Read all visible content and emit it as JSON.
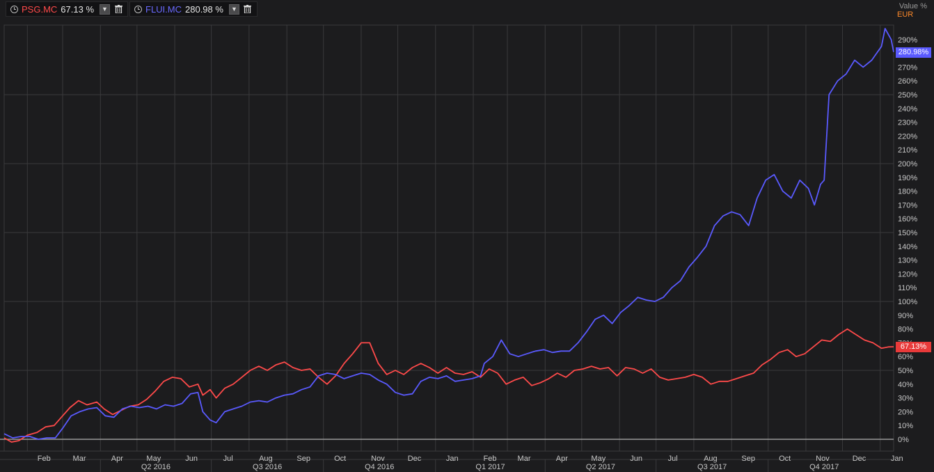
{
  "legend": [
    {
      "ticker": "PSG.MC",
      "value": "67.13 %",
      "color": "#ff4a4a"
    },
    {
      "ticker": "FLUI.MC",
      "value": "280.98 %",
      "color": "#5a5aff"
    }
  ],
  "axis_header": {
    "unit": "Value %",
    "currency": "EUR"
  },
  "last_tags": {
    "fluidra": "280.98%",
    "prosegur": "67.13%"
  },
  "icons": {
    "clock": "clock-icon",
    "dropdown": "chevron-down-icon",
    "delete": "trash-icon"
  },
  "colors": {
    "background": "#1c1c1e",
    "grid": "#3a3a3c",
    "prosegur": "#ff4a4a",
    "fluidra": "#5a5aff",
    "currency": "#ff8a2a",
    "zero_line": "#9a9a9a"
  },
  "chart_data": {
    "type": "line",
    "x_range": [
      "2016-01-13",
      "2018-01-12"
    ],
    "ylim": [
      -3,
      300
    ],
    "y_ticks": [
      0,
      10,
      20,
      30,
      40,
      50,
      60,
      70,
      80,
      90,
      100,
      110,
      120,
      130,
      140,
      150,
      160,
      170,
      180,
      190,
      200,
      210,
      220,
      230,
      240,
      250,
      260,
      270,
      280,
      290
    ],
    "y_tick_labels": [
      "0%",
      "10%",
      "20%",
      "30%",
      "40%",
      "50%",
      "60%",
      "70%",
      "80%",
      "90%",
      "100%",
      "110%",
      "120%",
      "130%",
      "140%",
      "150%",
      "160%",
      "170%",
      "180%",
      "190%",
      "200%",
      "210%",
      "220%",
      "230%",
      "240%",
      "250%",
      "260%",
      "270%",
      "280%",
      "290%"
    ],
    "month_ticks": [
      {
        "date": "2016-02-01",
        "label": "Feb"
      },
      {
        "date": "2016-03-01",
        "label": "Mar"
      },
      {
        "date": "2016-04-01",
        "label": "Apr"
      },
      {
        "date": "2016-05-01",
        "label": "May"
      },
      {
        "date": "2016-06-01",
        "label": "Jun"
      },
      {
        "date": "2016-07-01",
        "label": "Jul"
      },
      {
        "date": "2016-08-01",
        "label": "Aug"
      },
      {
        "date": "2016-09-01",
        "label": "Sep"
      },
      {
        "date": "2016-10-01",
        "label": "Oct"
      },
      {
        "date": "2016-11-01",
        "label": "Nov"
      },
      {
        "date": "2016-12-01",
        "label": "Dec"
      },
      {
        "date": "2017-01-01",
        "label": "Jan"
      },
      {
        "date": "2017-02-01",
        "label": "Feb"
      },
      {
        "date": "2017-03-01",
        "label": "Mar"
      },
      {
        "date": "2017-04-01",
        "label": "Apr"
      },
      {
        "date": "2017-05-01",
        "label": "May"
      },
      {
        "date": "2017-06-01",
        "label": "Jun"
      },
      {
        "date": "2017-07-01",
        "label": "Jul"
      },
      {
        "date": "2017-08-01",
        "label": "Aug"
      },
      {
        "date": "2017-09-01",
        "label": "Sep"
      },
      {
        "date": "2017-10-01",
        "label": "Oct"
      },
      {
        "date": "2017-11-01",
        "label": "Nov"
      },
      {
        "date": "2017-12-01",
        "label": "Dec"
      },
      {
        "date": "2018-01-01",
        "label": "Jan"
      }
    ],
    "quarter_ticks": [
      {
        "date": "2016-04-01",
        "end": "2016-07-01",
        "label": "Q2 2016"
      },
      {
        "date": "2016-07-01",
        "end": "2016-10-01",
        "label": "Q3 2016"
      },
      {
        "date": "2016-10-01",
        "end": "2017-01-01",
        "label": "Q4 2016"
      },
      {
        "date": "2017-01-01",
        "end": "2017-04-01",
        "label": "Q1 2017"
      },
      {
        "date": "2017-04-01",
        "end": "2017-07-01",
        "label": "Q2 2017"
      },
      {
        "date": "2017-07-01",
        "end": "2017-10-01",
        "label": "Q3 2017"
      },
      {
        "date": "2017-10-01",
        "end": "2018-01-01",
        "label": "Q4 2017"
      }
    ],
    "series": [
      {
        "name": "PSG.MC",
        "color": "#ff4a4a",
        "points": [
          [
            "2016-01-13",
            1
          ],
          [
            "2016-01-19",
            -2
          ],
          [
            "2016-01-25",
            -1
          ],
          [
            "2016-02-01",
            3
          ],
          [
            "2016-02-09",
            5
          ],
          [
            "2016-02-16",
            9
          ],
          [
            "2016-02-23",
            10
          ],
          [
            "2016-03-01",
            17
          ],
          [
            "2016-03-07",
            23
          ],
          [
            "2016-03-14",
            28
          ],
          [
            "2016-03-21",
            25
          ],
          [
            "2016-03-29",
            27
          ],
          [
            "2016-04-04",
            22
          ],
          [
            "2016-04-11",
            18
          ],
          [
            "2016-04-18",
            21
          ],
          [
            "2016-04-25",
            24
          ],
          [
            "2016-05-02",
            25
          ],
          [
            "2016-05-09",
            29
          ],
          [
            "2016-05-16",
            35
          ],
          [
            "2016-05-23",
            42
          ],
          [
            "2016-05-30",
            45
          ],
          [
            "2016-06-06",
            44
          ],
          [
            "2016-06-13",
            38
          ],
          [
            "2016-06-20",
            40
          ],
          [
            "2016-06-24",
            32
          ],
          [
            "2016-06-30",
            36
          ],
          [
            "2016-07-05",
            30
          ],
          [
            "2016-07-12",
            37
          ],
          [
            "2016-07-19",
            40
          ],
          [
            "2016-07-26",
            45
          ],
          [
            "2016-08-02",
            50
          ],
          [
            "2016-08-09",
            53
          ],
          [
            "2016-08-16",
            50
          ],
          [
            "2016-08-23",
            54
          ],
          [
            "2016-08-30",
            56
          ],
          [
            "2016-09-06",
            52
          ],
          [
            "2016-09-13",
            50
          ],
          [
            "2016-09-20",
            51
          ],
          [
            "2016-09-27",
            45
          ],
          [
            "2016-10-04",
            40
          ],
          [
            "2016-10-11",
            46
          ],
          [
            "2016-10-18",
            55
          ],
          [
            "2016-10-25",
            62
          ],
          [
            "2016-11-01",
            70
          ],
          [
            "2016-11-08",
            70
          ],
          [
            "2016-11-15",
            55
          ],
          [
            "2016-11-22",
            47
          ],
          [
            "2016-11-29",
            50
          ],
          [
            "2016-12-06",
            47
          ],
          [
            "2016-12-13",
            52
          ],
          [
            "2016-12-20",
            55
          ],
          [
            "2016-12-27",
            52
          ],
          [
            "2017-01-03",
            48
          ],
          [
            "2017-01-10",
            52
          ],
          [
            "2017-01-17",
            48
          ],
          [
            "2017-01-24",
            47
          ],
          [
            "2017-01-31",
            49
          ],
          [
            "2017-02-07",
            45
          ],
          [
            "2017-02-14",
            51
          ],
          [
            "2017-02-21",
            48
          ],
          [
            "2017-02-28",
            40
          ],
          [
            "2017-03-07",
            43
          ],
          [
            "2017-03-14",
            45
          ],
          [
            "2017-03-21",
            39
          ],
          [
            "2017-03-28",
            41
          ],
          [
            "2017-04-04",
            44
          ],
          [
            "2017-04-11",
            48
          ],
          [
            "2017-04-18",
            45
          ],
          [
            "2017-04-25",
            50
          ],
          [
            "2017-05-02",
            51
          ],
          [
            "2017-05-09",
            53
          ],
          [
            "2017-05-16",
            51
          ],
          [
            "2017-05-23",
            52
          ],
          [
            "2017-05-30",
            46
          ],
          [
            "2017-06-06",
            52
          ],
          [
            "2017-06-13",
            51
          ],
          [
            "2017-06-20",
            48
          ],
          [
            "2017-06-27",
            51
          ],
          [
            "2017-07-04",
            45
          ],
          [
            "2017-07-11",
            43
          ],
          [
            "2017-07-18",
            44
          ],
          [
            "2017-07-25",
            45
          ],
          [
            "2017-08-01",
            47
          ],
          [
            "2017-08-08",
            45
          ],
          [
            "2017-08-15",
            40
          ],
          [
            "2017-08-22",
            42
          ],
          [
            "2017-08-29",
            42
          ],
          [
            "2017-09-05",
            44
          ],
          [
            "2017-09-12",
            46
          ],
          [
            "2017-09-19",
            48
          ],
          [
            "2017-09-26",
            54
          ],
          [
            "2017-10-03",
            58
          ],
          [
            "2017-10-10",
            63
          ],
          [
            "2017-10-17",
            65
          ],
          [
            "2017-10-24",
            60
          ],
          [
            "2017-10-31",
            62
          ],
          [
            "2017-11-07",
            67
          ],
          [
            "2017-11-14",
            72
          ],
          [
            "2017-11-21",
            71
          ],
          [
            "2017-11-28",
            76
          ],
          [
            "2017-12-05",
            80
          ],
          [
            "2017-12-12",
            76
          ],
          [
            "2017-12-19",
            72
          ],
          [
            "2017-12-26",
            70
          ],
          [
            "2018-01-02",
            66
          ],
          [
            "2018-01-08",
            67
          ],
          [
            "2018-01-12",
            67.13
          ]
        ]
      },
      {
        "name": "FLUI.MC",
        "color": "#5a5aff",
        "points": [
          [
            "2016-01-13",
            4
          ],
          [
            "2016-01-20",
            1
          ],
          [
            "2016-01-27",
            2
          ],
          [
            "2016-02-03",
            2
          ],
          [
            "2016-02-10",
            0
          ],
          [
            "2016-02-17",
            1
          ],
          [
            "2016-02-24",
            1
          ],
          [
            "2016-03-01",
            8
          ],
          [
            "2016-03-08",
            17
          ],
          [
            "2016-03-15",
            20
          ],
          [
            "2016-03-22",
            22
          ],
          [
            "2016-03-29",
            23
          ],
          [
            "2016-04-05",
            17
          ],
          [
            "2016-04-12",
            16
          ],
          [
            "2016-04-19",
            22
          ],
          [
            "2016-04-26",
            24
          ],
          [
            "2016-05-03",
            23
          ],
          [
            "2016-05-10",
            24
          ],
          [
            "2016-05-17",
            22
          ],
          [
            "2016-05-24",
            25
          ],
          [
            "2016-05-31",
            24
          ],
          [
            "2016-06-07",
            26
          ],
          [
            "2016-06-14",
            33
          ],
          [
            "2016-06-20",
            34
          ],
          [
            "2016-06-24",
            20
          ],
          [
            "2016-06-30",
            14
          ],
          [
            "2016-07-05",
            12
          ],
          [
            "2016-07-12",
            20
          ],
          [
            "2016-07-19",
            22
          ],
          [
            "2016-07-26",
            24
          ],
          [
            "2016-08-02",
            27
          ],
          [
            "2016-08-09",
            28
          ],
          [
            "2016-08-16",
            27
          ],
          [
            "2016-08-23",
            30
          ],
          [
            "2016-08-30",
            32
          ],
          [
            "2016-09-06",
            33
          ],
          [
            "2016-09-13",
            36
          ],
          [
            "2016-09-20",
            38
          ],
          [
            "2016-09-27",
            46
          ],
          [
            "2016-10-04",
            48
          ],
          [
            "2016-10-11",
            47
          ],
          [
            "2016-10-18",
            44
          ],
          [
            "2016-10-25",
            46
          ],
          [
            "2016-11-01",
            48
          ],
          [
            "2016-11-08",
            47
          ],
          [
            "2016-11-15",
            43
          ],
          [
            "2016-11-22",
            40
          ],
          [
            "2016-11-29",
            34
          ],
          [
            "2016-12-06",
            32
          ],
          [
            "2016-12-13",
            33
          ],
          [
            "2016-12-20",
            42
          ],
          [
            "2016-12-27",
            45
          ],
          [
            "2017-01-03",
            44
          ],
          [
            "2017-01-10",
            46
          ],
          [
            "2017-01-17",
            42
          ],
          [
            "2017-01-24",
            43
          ],
          [
            "2017-01-31",
            44
          ],
          [
            "2017-02-07",
            46
          ],
          [
            "2017-02-10",
            55
          ],
          [
            "2017-02-17",
            60
          ],
          [
            "2017-02-24",
            72
          ],
          [
            "2017-03-03",
            62
          ],
          [
            "2017-03-10",
            60
          ],
          [
            "2017-03-17",
            62
          ],
          [
            "2017-03-24",
            64
          ],
          [
            "2017-03-31",
            65
          ],
          [
            "2017-04-07",
            63
          ],
          [
            "2017-04-14",
            64
          ],
          [
            "2017-04-21",
            64
          ],
          [
            "2017-04-28",
            70
          ],
          [
            "2017-05-05",
            78
          ],
          [
            "2017-05-12",
            87
          ],
          [
            "2017-05-19",
            90
          ],
          [
            "2017-05-26",
            84
          ],
          [
            "2017-06-02",
            92
          ],
          [
            "2017-06-09",
            97
          ],
          [
            "2017-06-16",
            103
          ],
          [
            "2017-06-23",
            101
          ],
          [
            "2017-06-30",
            100
          ],
          [
            "2017-07-07",
            103
          ],
          [
            "2017-07-14",
            110
          ],
          [
            "2017-07-21",
            115
          ],
          [
            "2017-07-28",
            125
          ],
          [
            "2017-08-04",
            132
          ],
          [
            "2017-08-11",
            140
          ],
          [
            "2017-08-18",
            155
          ],
          [
            "2017-08-25",
            162
          ],
          [
            "2017-09-01",
            165
          ],
          [
            "2017-09-08",
            163
          ],
          [
            "2017-09-15",
            155
          ],
          [
            "2017-09-22",
            175
          ],
          [
            "2017-09-29",
            188
          ],
          [
            "2017-10-06",
            192
          ],
          [
            "2017-10-13",
            180
          ],
          [
            "2017-10-20",
            175
          ],
          [
            "2017-10-27",
            188
          ],
          [
            "2017-11-03",
            182
          ],
          [
            "2017-11-08",
            170
          ],
          [
            "2017-11-13",
            185
          ],
          [
            "2017-11-16",
            188
          ],
          [
            "2017-11-20",
            250
          ],
          [
            "2017-11-27",
            260
          ],
          [
            "2017-12-04",
            265
          ],
          [
            "2017-12-11",
            275
          ],
          [
            "2017-12-18",
            270
          ],
          [
            "2017-12-25",
            275
          ],
          [
            "2018-01-02",
            285
          ],
          [
            "2018-01-05",
            298
          ],
          [
            "2018-01-10",
            290
          ],
          [
            "2018-01-12",
            280.98
          ]
        ]
      }
    ],
    "last_values": {
      "PSG.MC": 67.13,
      "FLUI.MC": 280.98
    },
    "grid": true,
    "legend_position": "top-left"
  }
}
